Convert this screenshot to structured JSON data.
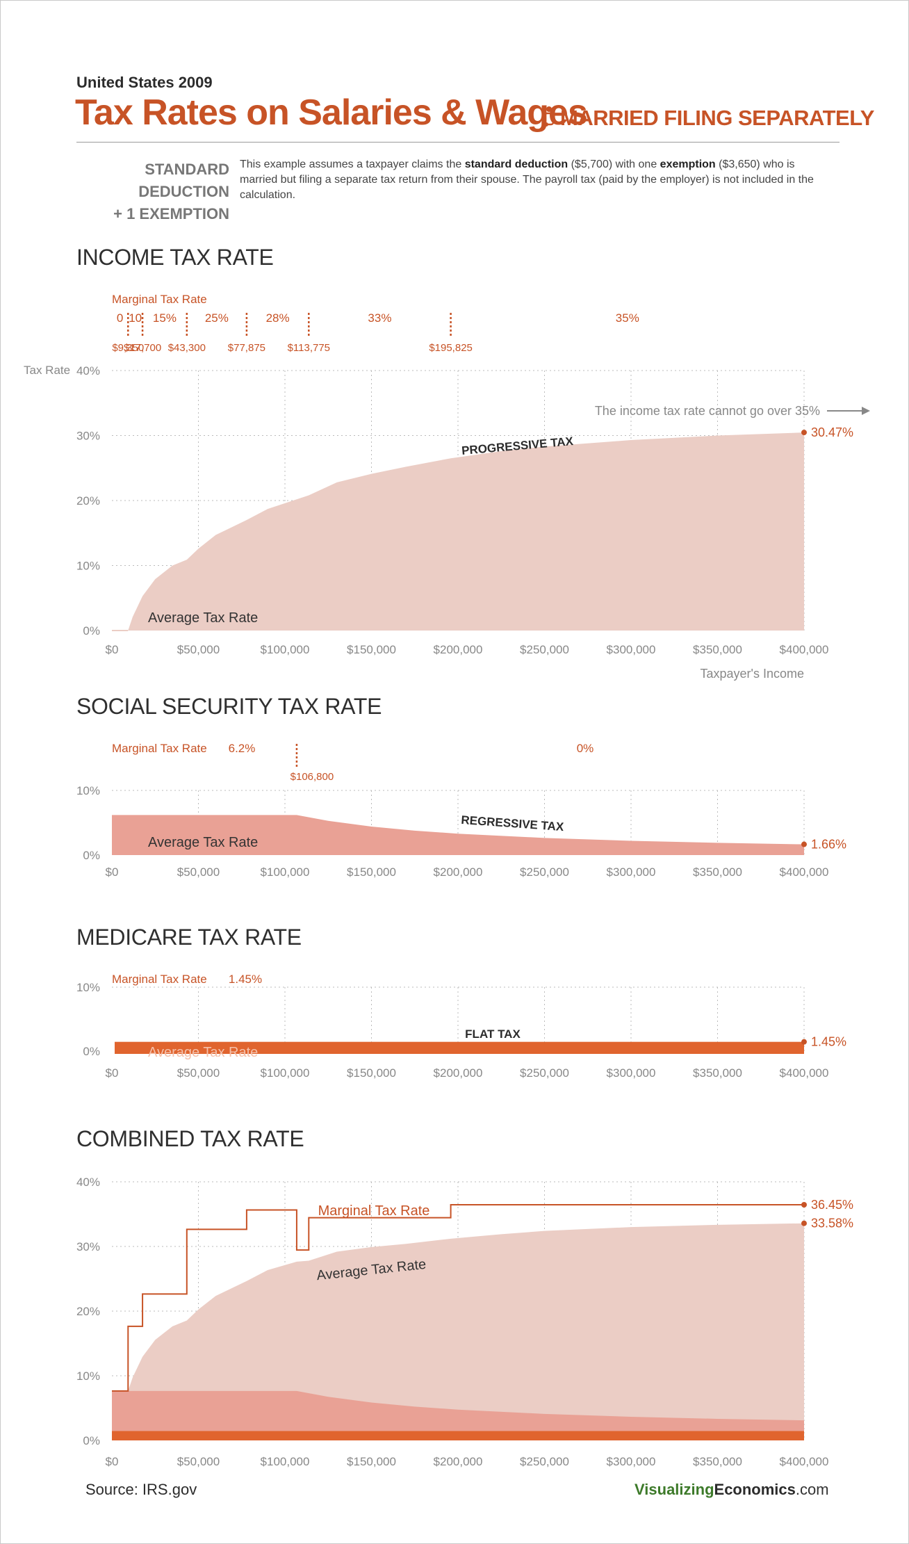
{
  "header": {
    "year": "United States 2009",
    "title": "Tax Rates on Salaries & Wages",
    "filing_status": "MARRIED FILING SEPARATELY",
    "filing_icon": "married-couple-icon",
    "deduction_line1": "STANDARD DEDUCTION",
    "deduction_line2": "+ 1 EXEMPTION",
    "desc_1": "This example assumes a taxpayer claims the ",
    "desc_b1": "standard deduction",
    "desc_2": " ($5,700) with one ",
    "desc_b2": "exemption",
    "desc_3": " ($3,650) who is married but filing a separate tax return from their spouse.  The payroll tax (paid by the employer) is not included in the calculation."
  },
  "sections": {
    "income": "INCOME TAX RATE",
    "social": "SOCIAL SECURITY TAX RATE",
    "medicare": "MEDICARE TAX RATE",
    "combined": "COMBINED TAX RATE"
  },
  "footer": {
    "source": "Source:  IRS.gov",
    "brand_visualizing": "Visualizing",
    "brand_economics": "Economics",
    "brand_com": ".com"
  },
  "colors": {
    "accent": "#c75326",
    "income_fill": "#ebcdc5",
    "ss_fill": "#e9a195",
    "medicare_fill": "#e0642e",
    "grid": "#bbbbbb",
    "axis_text": "#888888"
  },
  "chart_data": [
    {
      "type": "area",
      "name": "income",
      "xlabel": "Taxpayer's Income",
      "ylabel": "Tax Rate",
      "xlim": [
        0,
        400000
      ],
      "ylim": [
        0,
        40
      ],
      "x_ticks": [
        "$0",
        "$50,000",
        "$100,000",
        "$150,000",
        "$200,000",
        "$250,000",
        "$300,000",
        "$350,000",
        "$400,000"
      ],
      "y_ticks": [
        "0%",
        "10%",
        "20%",
        "30%",
        "40%"
      ],
      "marginal_label": "Marginal Tax Rate",
      "brackets": [
        {
          "rate": "0",
          "from": 0,
          "to": 9350
        },
        {
          "rate": "10",
          "from": 9350,
          "to": 17700
        },
        {
          "rate": "15%",
          "from": 17700,
          "to": 43300
        },
        {
          "rate": "25%",
          "from": 43300,
          "to": 77875
        },
        {
          "rate": "28%",
          "from": 77875,
          "to": 113775
        },
        {
          "rate": "33%",
          "from": 113775,
          "to": 195825
        },
        {
          "rate": "35%",
          "from": 195825,
          "to": 400000
        }
      ],
      "thresholds": [
        "$9,350",
        "$17,700",
        "$43,300",
        "$77,875",
        "$113,775",
        "$195,825"
      ],
      "series": [
        {
          "name": "Average Tax Rate",
          "x": [
            0,
            9350,
            12000,
            17700,
            25000,
            35000,
            43300,
            50000,
            60000,
            77875,
            90000,
            113775,
            130000,
            150000,
            170000,
            195825,
            225000,
            250000,
            300000,
            350000,
            400000
          ],
          "values": [
            0,
            0,
            2.1,
            5.3,
            7.9,
            10.0,
            10.9,
            12.6,
            14.7,
            17.0,
            18.7,
            20.8,
            22.8,
            24.1,
            25.2,
            26.5,
            27.6,
            28.3,
            29.3,
            30.0,
            30.47
          ]
        }
      ],
      "annotations": [
        "PROGRESSIVE TAX",
        "Average Tax Rate",
        "The income tax rate cannot go over 35%"
      ],
      "end_label": "30.47%"
    },
    {
      "type": "area",
      "name": "social_security",
      "xlim": [
        0,
        400000
      ],
      "ylim": [
        0,
        10
      ],
      "x_ticks": [
        "$0",
        "$50,000",
        "$100,000",
        "$150,000",
        "$200,000",
        "$250,000",
        "$300,000",
        "$350,000",
        "$400,000"
      ],
      "y_ticks": [
        "0%",
        "10%"
      ],
      "marginal_label": "Marginal Tax Rate",
      "brackets": [
        {
          "rate": "6.2%",
          "from": 0,
          "to": 106800
        },
        {
          "rate": "0%",
          "from": 106800,
          "to": 400000
        }
      ],
      "thresholds": [
        "$106,800"
      ],
      "series": [
        {
          "name": "Average Tax Rate",
          "x": [
            0,
            106800,
            125000,
            150000,
            175000,
            200000,
            250000,
            300000,
            350000,
            400000
          ],
          "values": [
            6.2,
            6.2,
            5.3,
            4.41,
            3.78,
            3.31,
            2.65,
            2.21,
            1.89,
            1.66
          ]
        }
      ],
      "annotations": [
        "REGRESSIVE TAX",
        "Average Tax Rate"
      ],
      "end_label": "1.66%"
    },
    {
      "type": "area",
      "name": "medicare",
      "xlim": [
        0,
        400000
      ],
      "ylim": [
        0,
        10
      ],
      "x_ticks": [
        "$0",
        "$50,000",
        "$100,000",
        "$150,000",
        "$200,000",
        "$250,000",
        "$300,000",
        "$350,000",
        "$400,000"
      ],
      "y_ticks": [
        "0%",
        "10%"
      ],
      "marginal_label": "Marginal Tax Rate",
      "brackets": [
        {
          "rate": "1.45%",
          "from": 0,
          "to": 400000
        }
      ],
      "series": [
        {
          "name": "Average Tax Rate",
          "x": [
            0,
            400000
          ],
          "values": [
            1.45,
            1.45
          ]
        }
      ],
      "annotations": [
        "FLAT TAX",
        "Average Tax Rate"
      ],
      "end_label": "1.45%"
    },
    {
      "type": "area",
      "name": "combined",
      "xlim": [
        0,
        400000
      ],
      "ylim": [
        0,
        40
      ],
      "x_ticks": [
        "$0",
        "$50,000",
        "$100,000",
        "$150,000",
        "$200,000",
        "$250,000",
        "$300,000",
        "$350,000",
        "$400,000"
      ],
      "y_ticks": [
        "0%",
        "10%",
        "20%",
        "30%",
        "40%"
      ],
      "series": [
        {
          "name": "Marginal Tax Rate",
          "x": [
            0,
            9350,
            9350,
            17700,
            17700,
            43300,
            43300,
            77875,
            77875,
            106800,
            106800,
            113775,
            113775,
            195825,
            195825,
            400000
          ],
          "values": [
            7.65,
            7.65,
            17.65,
            17.65,
            22.65,
            22.65,
            32.65,
            32.65,
            35.65,
            35.65,
            29.45,
            29.45,
            34.45,
            34.45,
            36.45,
            36.45
          ]
        },
        {
          "name": "Average Tax Rate",
          "x": [
            0,
            9350,
            12000,
            17700,
            25000,
            35000,
            43300,
            50000,
            60000,
            77875,
            90000,
            106800,
            113775,
            130000,
            150000,
            170000,
            195825,
            225000,
            250000,
            300000,
            350000,
            400000
          ],
          "values": [
            7.65,
            7.65,
            9.75,
            12.95,
            15.55,
            17.65,
            18.55,
            20.25,
            22.35,
            24.65,
            26.35,
            27.65,
            27.8,
            29.2,
            29.9,
            30.4,
            31.2,
            31.9,
            32.4,
            33.0,
            33.35,
            33.58
          ]
        }
      ],
      "end_labels": [
        "36.45%",
        "33.58%"
      ]
    }
  ]
}
